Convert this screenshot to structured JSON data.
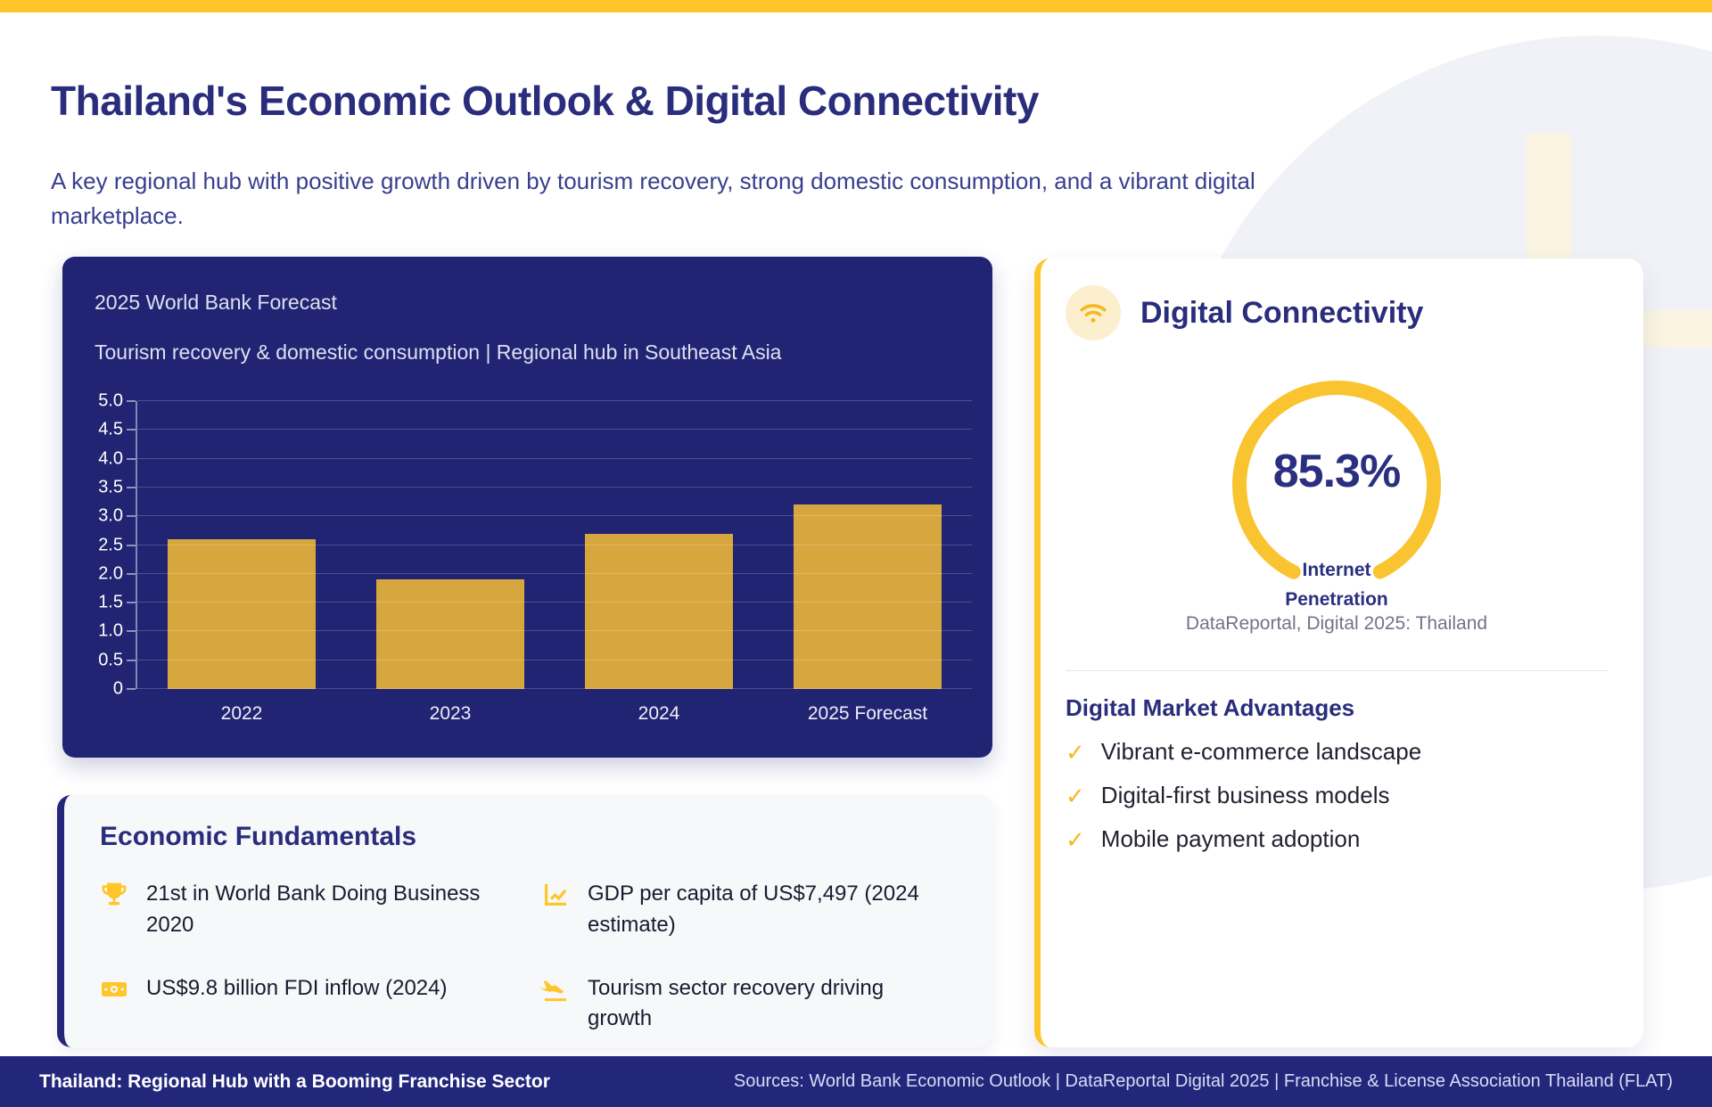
{
  "page": {
    "title": "Thailand's Economic Outlook & Digital Connectivity",
    "subtitle": "A key regional hub with positive growth driven by tourism recovery, strong domestic consumption, and a vibrant digital marketplace."
  },
  "chart_data": {
    "type": "bar",
    "title": "2025 World Bank Forecast",
    "subtitle": "Tourism recovery & domestic consumption | Regional hub in Southeast Asia",
    "categories": [
      "2022",
      "2023",
      "2024",
      "2025 Forecast"
    ],
    "values": [
      2.6,
      1.9,
      2.7,
      3.2
    ],
    "ylim": [
      0,
      5.0
    ],
    "ytick_labels": [
      "0",
      "0.5",
      "1.0",
      "1.5",
      "2.0",
      "2.5",
      "3.0",
      "3.5",
      "4.0",
      "4.5",
      "5.0"
    ],
    "grid": true,
    "legend": false,
    "xlabel": "",
    "ylabel": "",
    "bar_color": "#D7A73F"
  },
  "digital_card": {
    "heading": "Digital Connectivity",
    "gauge": {
      "value_label": "85.3%",
      "value_percent": 85.3,
      "label_line1": "Internet",
      "label_line2": "Penetration"
    },
    "source": "DataReportal, Digital 2025: Thailand",
    "advantages": {
      "heading": "Digital Market Advantages",
      "items": [
        "Vibrant e-commerce landscape",
        "Digital-first business models",
        "Mobile payment adoption"
      ]
    }
  },
  "economic": {
    "heading": "Economic Fundamentals",
    "items": [
      {
        "icon": "trophy-icon",
        "text": "21st in World Bank Doing Business 2020"
      },
      {
        "icon": "chart-increase-icon",
        "text": "GDP per capita of US$7,497 (2024 estimate)"
      },
      {
        "icon": "banknote-icon",
        "text": "US$9.8 billion FDI inflow (2024)"
      },
      {
        "icon": "plane-arrival-icon",
        "text": "Tourism sector recovery driving growth"
      }
    ]
  },
  "footer": {
    "left": "Thailand: Regional Hub with a Booming Franchise Sector",
    "right": "Sources: World Bank Economic Outlook | DataReportal Digital 2025 | Franchise & License Association Thailand (FLAT)"
  },
  "colors": {
    "accent_yellow": "#FFC629",
    "ring_yellow": "#F9C42F",
    "bar_gold": "#D7A73F",
    "navy_panel": "#212472",
    "navy_footer": "#23277C",
    "navy_text": "#292D7C",
    "badge_cream": "#FCEFCE"
  }
}
